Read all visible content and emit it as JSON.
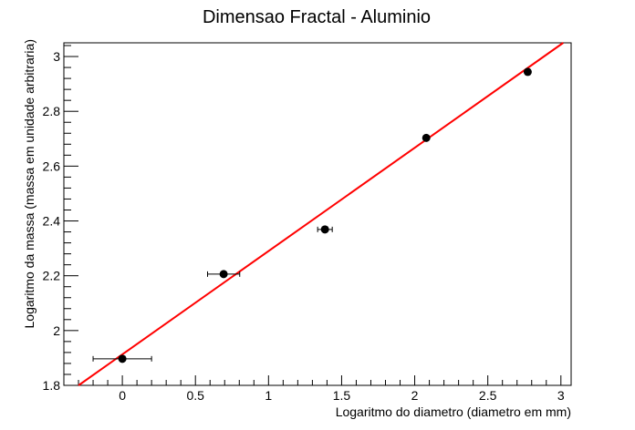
{
  "chart_data": {
    "type": "scatter",
    "title": "Dimensao Fractal - Aluminio",
    "xlabel": "Logaritmo do diametro (diametro em mm)",
    "ylabel": "Logaritmo da massa (massa em unidade arbitraria)",
    "xlim": [
      -0.4,
      3.07
    ],
    "ylim": [
      1.8,
      3.05
    ],
    "x_ticks": [
      0,
      0.5,
      1,
      1.5,
      2,
      2.5,
      3
    ],
    "x_tick_labels": [
      "0",
      "0.5",
      "1",
      "1.5",
      "2",
      "2.5",
      "3"
    ],
    "y_ticks": [
      1.8,
      2.0,
      2.2,
      2.4,
      2.6,
      2.8,
      3.0
    ],
    "y_tick_labels": [
      "1.8",
      "2",
      "2.2",
      "2.4",
      "2.6",
      "2.8",
      "3"
    ],
    "grid": false,
    "points": [
      {
        "x": 0.0,
        "y": 1.897,
        "xerr": 0.2
      },
      {
        "x": 0.693,
        "y": 2.206,
        "xerr": 0.11
      },
      {
        "x": 1.386,
        "y": 2.369,
        "xerr": 0.05
      },
      {
        "x": 2.079,
        "y": 2.703,
        "xerr": 0.0
      },
      {
        "x": 2.773,
        "y": 2.944,
        "xerr": 0.0
      }
    ],
    "fit": {
      "slope": 0.377,
      "intercept": 1.913
    },
    "point_color": "#000000",
    "fit_color": "#ff0000"
  }
}
